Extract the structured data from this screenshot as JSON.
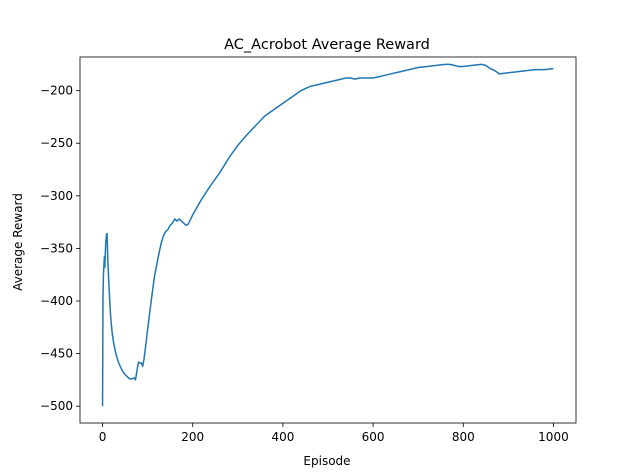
{
  "chart_data": {
    "type": "line",
    "title": "AC_Acrobot Average Reward",
    "xlabel": "Episode",
    "ylabel": "Average Reward",
    "xlim": [
      -50,
      1050
    ],
    "ylim": [
      -516,
      -168
    ],
    "xticks": [
      0,
      200,
      400,
      600,
      800,
      1000
    ],
    "yticks": [
      -500,
      -450,
      -400,
      -350,
      -300,
      -250,
      -200
    ],
    "xtick_labels": [
      "0",
      "200",
      "400",
      "600",
      "800",
      "1000"
    ],
    "ytick_labels": [
      "−500",
      "−450",
      "−400",
      "−350",
      "−300",
      "−250",
      "−200"
    ],
    "grid": false,
    "legend": "none",
    "series": [
      {
        "color": "#1f77b4",
        "x": [
          0,
          1,
          2,
          4,
          5,
          7,
          9,
          10,
          12,
          15,
          18,
          21,
          25,
          30,
          35,
          40,
          45,
          50,
          55,
          60,
          65,
          70,
          73,
          75,
          78,
          80,
          83,
          86,
          89,
          92,
          95,
          100,
          105,
          110,
          115,
          120,
          125,
          130,
          135,
          140,
          145,
          150,
          155,
          160,
          165,
          170,
          175,
          180,
          185,
          190,
          200,
          220,
          240,
          260,
          280,
          300,
          320,
          340,
          360,
          380,
          400,
          420,
          440,
          460,
          480,
          500,
          520,
          540,
          550,
          560,
          570,
          580,
          600,
          610,
          620,
          640,
          660,
          680,
          700,
          720,
          740,
          760,
          770,
          780,
          790,
          800,
          820,
          840,
          850,
          860,
          870,
          880,
          900,
          920,
          940,
          960,
          980,
          1000
        ],
        "y": [
          -500,
          -395,
          -375,
          -358,
          -368,
          -345,
          -336,
          -336,
          -365,
          -392,
          -415,
          -429,
          -441,
          -451,
          -458,
          -463,
          -467,
          -470,
          -472,
          -474,
          -474,
          -473,
          -475,
          -470,
          -462,
          -458,
          -459,
          -459,
          -462,
          -455,
          -445,
          -427,
          -410,
          -393,
          -377,
          -366,
          -355,
          -345,
          -338,
          -334,
          -332,
          -328,
          -326,
          -322,
          -324,
          -322,
          -324,
          -326,
          -328,
          -327,
          -318,
          -303,
          -290,
          -278,
          -264,
          -252,
          -242,
          -233,
          -224,
          -218,
          -212,
          -206,
          -200,
          -196,
          -194,
          -192,
          -190,
          -188,
          -188,
          -189,
          -188,
          -188,
          -188,
          -187,
          -186,
          -184,
          -182,
          -180,
          -178,
          -177,
          -176,
          -175,
          -175,
          -176,
          -177,
          -177,
          -176,
          -175,
          -176,
          -179,
          -181,
          -184,
          -183,
          -182,
          -181,
          -180,
          -180,
          -179
        ]
      }
    ]
  }
}
